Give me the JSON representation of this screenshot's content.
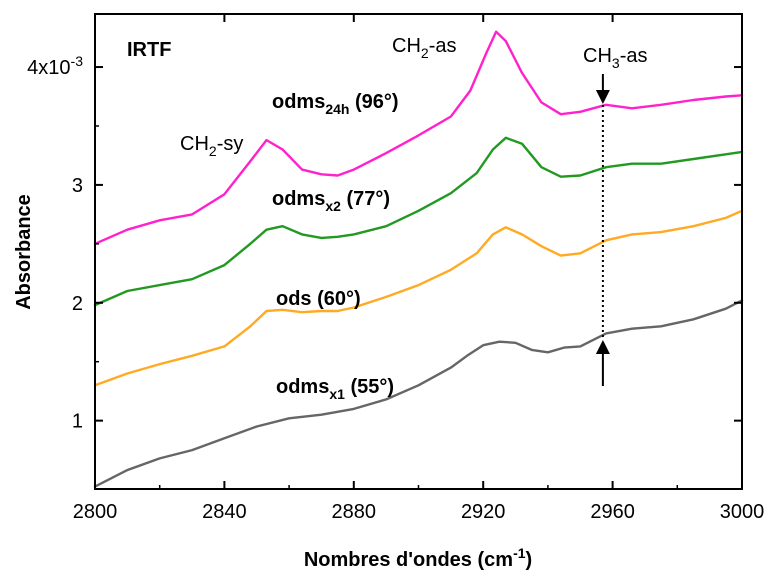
{
  "chart_data": {
    "type": "line",
    "panel_label": "IRTF",
    "xlabel": "Nombres d'ondes (cm",
    "xlabel_sup": "-1",
    "xlabel_end": ")",
    "ylabel": "Absorbance",
    "xlim": [
      2800,
      3000
    ],
    "ylim": [
      0.42,
      4.45
    ],
    "x_ticks": [
      2800,
      2840,
      2880,
      2920,
      2960,
      3000
    ],
    "y_ticks": [
      {
        "value": 1,
        "label": "1"
      },
      {
        "value": 2,
        "label": "2"
      },
      {
        "value": 3,
        "label": "3"
      },
      {
        "value": 4,
        "label": "4x10",
        "sup": "-3"
      }
    ],
    "series": [
      {
        "label_main": "odms",
        "label_sub": "24h",
        "label_tail": " (96°)",
        "color": "#ff22cc",
        "x": [
          2800,
          2810,
          2820,
          2830,
          2840,
          2848,
          2853,
          2858,
          2864,
          2870,
          2875,
          2880,
          2890,
          2900,
          2910,
          2916,
          2921,
          2924,
          2927,
          2932,
          2938,
          2944,
          2950,
          2958,
          2966,
          2975,
          2985,
          2995,
          3000
        ],
        "y": [
          2.5,
          2.62,
          2.7,
          2.75,
          2.92,
          3.2,
          3.38,
          3.3,
          3.13,
          3.09,
          3.08,
          3.13,
          3.27,
          3.42,
          3.58,
          3.8,
          4.12,
          4.3,
          4.22,
          3.95,
          3.7,
          3.6,
          3.62,
          3.68,
          3.65,
          3.68,
          3.72,
          3.75,
          3.76
        ]
      },
      {
        "label_main": "odms",
        "label_sub": "x2",
        "label_tail": " (77°)",
        "color": "#229922",
        "x": [
          2800,
          2810,
          2820,
          2830,
          2840,
          2848,
          2853,
          2858,
          2864,
          2870,
          2875,
          2880,
          2890,
          2900,
          2910,
          2918,
          2923,
          2927,
          2932,
          2938,
          2944,
          2950,
          2958,
          2966,
          2975,
          2985,
          2995,
          3000
        ],
        "y": [
          1.98,
          2.1,
          2.15,
          2.2,
          2.32,
          2.5,
          2.62,
          2.65,
          2.58,
          2.55,
          2.56,
          2.58,
          2.65,
          2.78,
          2.93,
          3.1,
          3.3,
          3.4,
          3.35,
          3.15,
          3.07,
          3.08,
          3.15,
          3.18,
          3.18,
          3.22,
          3.26,
          3.28
        ]
      },
      {
        "label_main": "ods",
        "label_sub": "",
        "label_tail": " (60°)",
        "color": "#ffaa22",
        "x": [
          2800,
          2810,
          2820,
          2830,
          2840,
          2848,
          2853,
          2858,
          2864,
          2870,
          2875,
          2880,
          2890,
          2900,
          2910,
          2918,
          2923,
          2927,
          2932,
          2938,
          2944,
          2950,
          2958,
          2966,
          2975,
          2985,
          2995,
          3000
        ],
        "y": [
          1.3,
          1.4,
          1.48,
          1.55,
          1.63,
          1.8,
          1.93,
          1.94,
          1.92,
          1.93,
          1.93,
          1.96,
          2.05,
          2.15,
          2.28,
          2.42,
          2.58,
          2.64,
          2.58,
          2.48,
          2.4,
          2.42,
          2.53,
          2.58,
          2.6,
          2.65,
          2.72,
          2.78
        ]
      },
      {
        "label_main": "odms",
        "label_sub": "x1",
        "label_tail": " (55°)",
        "color": "#666666",
        "x": [
          2800,
          2810,
          2820,
          2830,
          2840,
          2850,
          2860,
          2870,
          2880,
          2890,
          2900,
          2910,
          2915,
          2920,
          2925,
          2930,
          2935,
          2940,
          2945,
          2950,
          2958,
          2966,
          2975,
          2985,
          2995,
          3000
        ],
        "y": [
          0.44,
          0.58,
          0.68,
          0.75,
          0.85,
          0.95,
          1.02,
          1.05,
          1.1,
          1.18,
          1.3,
          1.45,
          1.55,
          1.64,
          1.67,
          1.66,
          1.6,
          1.58,
          1.62,
          1.63,
          1.74,
          1.78,
          1.8,
          1.86,
          1.95,
          2.02
        ]
      }
    ],
    "annotations": [
      {
        "main": "CH",
        "sub": "2",
        "tail": "-sy"
      },
      {
        "main": "CH",
        "sub": "2",
        "tail": "-as"
      },
      {
        "main": "CH",
        "sub": "3",
        "tail": "-as"
      }
    ],
    "marker_x": 2957
  }
}
